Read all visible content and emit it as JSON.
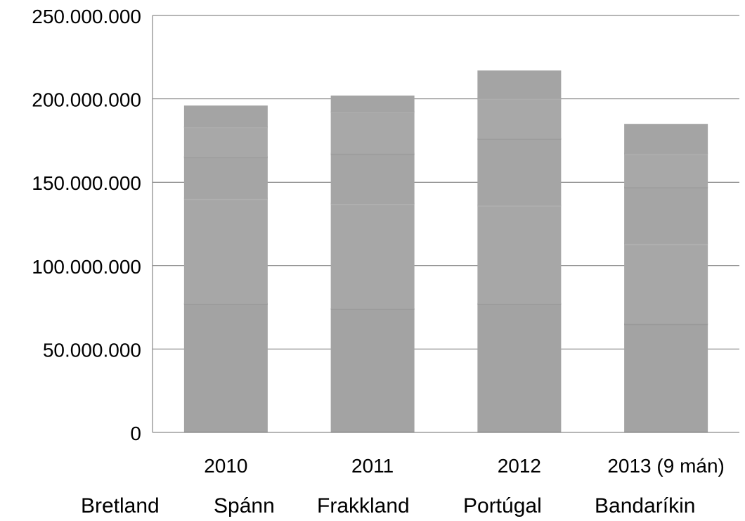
{
  "chart_data": {
    "type": "bar",
    "stacked": true,
    "title": "",
    "xlabel": "",
    "ylabel": "",
    "ylim": [
      0,
      250000000
    ],
    "yticks": [
      "0",
      "50.000.000",
      "100.000.000",
      "150.000.000",
      "200.000.000",
      "250.000.000"
    ],
    "grid": true,
    "legend_position": "bottom",
    "categories": [
      "2010",
      "2011",
      "2012",
      "2013 (9 mán)"
    ],
    "series": [
      {
        "name": "Bretland",
        "values": [
          77000000,
          74000000,
          77000000,
          65000000
        ]
      },
      {
        "name": "Spánn",
        "values": [
          63000000,
          63000000,
          59000000,
          48000000
        ]
      },
      {
        "name": "Frakkland",
        "values": [
          25000000,
          30000000,
          40000000,
          34000000
        ]
      },
      {
        "name": "Portúgal",
        "values": [
          18000000,
          25000000,
          24000000,
          20000000
        ]
      },
      {
        "name": "Bandaríkin",
        "values": [
          13000000,
          10000000,
          17000000,
          18000000
        ]
      }
    ]
  },
  "colors": {
    "bar": "#a6a6a6",
    "gridline": "#6e6e6e"
  }
}
